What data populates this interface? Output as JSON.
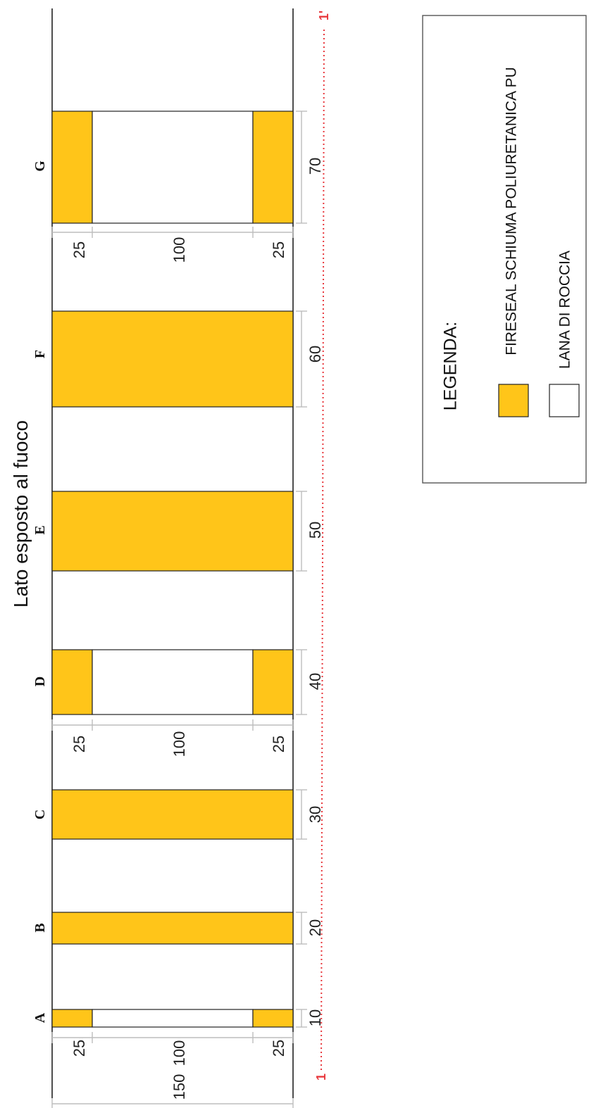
{
  "side_label": "Lato esposto al fuoco",
  "colors": {
    "fireseal": "#FFC519",
    "rockwool": "#FFFFFF",
    "outline": "#222222",
    "dimension": "#BDBDBD",
    "axis": "#E8383D"
  },
  "axis": {
    "start_label": "1",
    "end_label": "1'"
  },
  "depth_dims": {
    "overall": "150",
    "rockwool_core": "100",
    "fireseal_top": "25",
    "fireseal_bottom": "25"
  },
  "joints": [
    {
      "id": "A",
      "width": "10",
      "fill": "sandwich"
    },
    {
      "id": "B",
      "width": "20",
      "fill": "fireseal"
    },
    {
      "id": "C",
      "width": "30",
      "fill": "fireseal"
    },
    {
      "id": "D",
      "width": "40",
      "fill": "sandwich"
    },
    {
      "id": "E",
      "width": "50",
      "fill": "fireseal"
    },
    {
      "id": "F",
      "width": "60",
      "fill": "fireseal"
    },
    {
      "id": "G",
      "width": "70",
      "fill": "sandwich"
    }
  ],
  "legend": {
    "title": "LEGENDA:",
    "items": [
      {
        "label": "FIRESEAL SCHIUMA POLIURETANICA PU",
        "swatch": "fireseal",
        "icon": "fireseal-swatch"
      },
      {
        "label": "LANA DI ROCCIA",
        "swatch": "rockwool",
        "icon": "rockwool-swatch"
      }
    ]
  }
}
